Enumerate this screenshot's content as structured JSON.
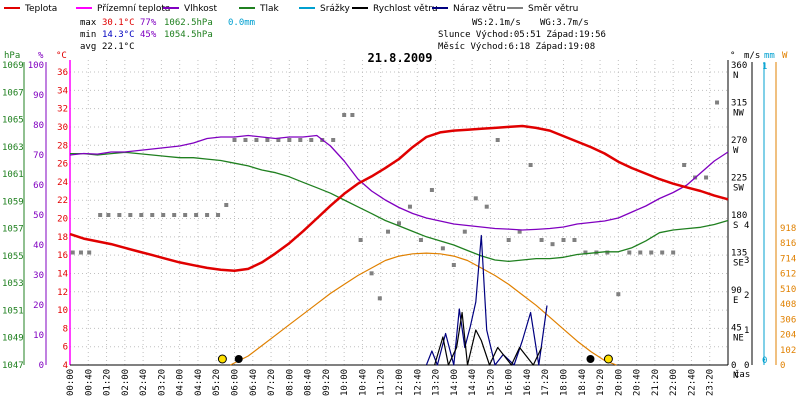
{
  "legend": [
    {
      "label": "Teplota",
      "color": "#e00000"
    },
    {
      "label": "Přízemní teplota",
      "color": "#ff00ff"
    },
    {
      "label": "Vlhkost",
      "color": "#8000c0"
    },
    {
      "label": "Tlak",
      "color": "#208020"
    },
    {
      "label": "Srážky",
      "color": "#00a0d0"
    },
    {
      "label": "Rychlost větru",
      "color": "#000000"
    },
    {
      "label": "Náraz větru",
      "color": "#000080"
    },
    {
      "label": "Směr větru",
      "color": "#808080"
    }
  ],
  "stats": {
    "max_label": "max",
    "max_temp": "30.1°C",
    "max_hum": "77%",
    "max_press": "1062.5hPa",
    "max_rain": "0.0mm",
    "min_label": "min",
    "min_temp": "14.3°C",
    "min_hum": "45%",
    "min_press": "1054.5hPa",
    "avg_label": "avg",
    "avg_temp": "22.1°C",
    "ws": "WS:2.1m/s",
    "wg": "WG:3.7m/s",
    "sun": "Slunce  Východ:05:51  Západ:19:56",
    "moon": "Měsíc  Východ:6:18   Západ:19:08"
  },
  "colors": {
    "temp": "#e00000",
    "ground": "#ff00ff",
    "hum": "#8000c0",
    "press": "#208020",
    "rain": "#00a0d0",
    "wind": "#000000",
    "gust": "#000080",
    "dir": "#808080",
    "sun": "#e08000",
    "grid": "#c0c0c0"
  },
  "chart_data": {
    "type": "line",
    "title": "21.8.2009",
    "x_unit": "čas",
    "x_ticks": [
      "00:00",
      "00:40",
      "01:20",
      "02:00",
      "02:40",
      "03:20",
      "04:00",
      "04:40",
      "05:20",
      "06:00",
      "06:40",
      "07:20",
      "08:00",
      "08:40",
      "09:20",
      "10:00",
      "10:40",
      "11:20",
      "12:00",
      "12:40",
      "13:20",
      "14:00",
      "14:40",
      "15:20",
      "16:00",
      "16:40",
      "17:20",
      "18:00",
      "18:40",
      "19:20",
      "20:00",
      "20:40",
      "21:20",
      "22:00",
      "22:40",
      "23:20"
    ],
    "axes": {
      "hpa": {
        "label": "hPa",
        "ticks": [
          "1047",
          "1049",
          "1051",
          "1053",
          "1055",
          "1057",
          "1059",
          "1061",
          "1063",
          "1065",
          "1067",
          "1069"
        ]
      },
      "percent": {
        "label": "%",
        "ticks": [
          "0",
          "10",
          "20",
          "30",
          "40",
          "50",
          "60",
          "70",
          "80",
          "90",
          "100"
        ]
      },
      "celsius": {
        "label": "°C",
        "ticks": [
          "4",
          "6",
          "8",
          "10",
          "12",
          "14",
          "16",
          "18",
          "20",
          "22",
          "24",
          "26",
          "28",
          "30",
          "32",
          "34",
          "36"
        ]
      },
      "degrees": {
        "label": "°",
        "ticks": [
          "0",
          "45",
          "90",
          "135",
          "180",
          "225",
          "270",
          "315",
          "360"
        ],
        "directions": [
          "N",
          "NE",
          "E",
          "SE",
          "S",
          "SW",
          "W",
          "NW",
          "N"
        ]
      },
      "ms": {
        "label": "m/s",
        "ticks": [
          "0",
          "1",
          "2",
          "3",
          "4"
        ]
      },
      "mm": {
        "label": "mm",
        "ticks": [
          "0",
          "1"
        ]
      },
      "wm2": {
        "label": "W",
        "ticks": [
          "0",
          "102",
          "204",
          "306",
          "408",
          "510",
          "612",
          "714",
          "816",
          "918"
        ]
      }
    },
    "series": [
      {
        "name": "Teplota",
        "unit": "°C",
        "color": "#e00000",
        "x": [
          0,
          0.5,
          1,
          1.5,
          2,
          2.5,
          3,
          3.5,
          4,
          4.5,
          5,
          5.5,
          6,
          6.5,
          7,
          7.5,
          8,
          8.5,
          9,
          9.5,
          10,
          10.5,
          11,
          11.5,
          12,
          12.5,
          13,
          13.5,
          14,
          14.5,
          15,
          15.5,
          16,
          16.5,
          17,
          17.5,
          18,
          18.5,
          19,
          19.5,
          20,
          20.5,
          21,
          21.5,
          22,
          22.5,
          23,
          23.5,
          24
        ],
        "y": [
          18.3,
          17.8,
          17.5,
          17.2,
          16.8,
          16.4,
          16.0,
          15.6,
          15.2,
          14.9,
          14.6,
          14.4,
          14.3,
          14.5,
          15.2,
          16.2,
          17.3,
          18.6,
          20.0,
          21.4,
          22.7,
          23.8,
          24.6,
          25.5,
          26.5,
          27.8,
          28.9,
          29.4,
          29.6,
          29.7,
          29.8,
          29.9,
          30.0,
          30.1,
          29.9,
          29.6,
          29.0,
          28.4,
          27.8,
          27.1,
          26.2,
          25.5,
          24.9,
          24.3,
          23.8,
          23.4,
          23.0,
          22.5,
          22.1
        ]
      },
      {
        "name": "Vlhkost",
        "unit": "%",
        "color": "#8000c0",
        "x": [
          0,
          0.5,
          1,
          1.5,
          2,
          2.5,
          3,
          3.5,
          4,
          4.5,
          5,
          5.5,
          6,
          6.5,
          7,
          7.5,
          8,
          8.5,
          9,
          9.5,
          10,
          10.5,
          11,
          11.5,
          12,
          12.5,
          13,
          13.5,
          14,
          14.5,
          15,
          15.5,
          16,
          16.5,
          17,
          17.5,
          18,
          18.5,
          19,
          19.5,
          20,
          20.5,
          21,
          21.5,
          22,
          22.5,
          23,
          23.5,
          24
        ],
        "y": [
          70,
          70.5,
          70.3,
          71,
          71,
          71.5,
          72,
          72.5,
          73,
          74,
          75.5,
          76,
          76,
          76.5,
          76,
          75.5,
          76,
          76,
          76.5,
          73,
          68,
          62,
          58,
          55,
          52.5,
          50.5,
          49,
          48,
          47,
          46.5,
          46,
          45.5,
          45.3,
          45,
          45.2,
          45.5,
          46,
          47,
          47.5,
          48,
          49,
          51,
          53,
          55.5,
          57.5,
          60,
          64,
          68,
          71
        ]
      },
      {
        "name": "Tlak",
        "unit": "hPa",
        "color": "#208020",
        "x": [
          0,
          0.5,
          1,
          1.5,
          2,
          2.5,
          3,
          3.5,
          4,
          4.5,
          5,
          5.5,
          6,
          6.5,
          7,
          7.5,
          8,
          8.5,
          9,
          9.5,
          10,
          10.5,
          11,
          11.5,
          12,
          12.5,
          13,
          13.5,
          14,
          14.5,
          15,
          15.5,
          16,
          16.5,
          17,
          17.5,
          18,
          18.5,
          19,
          19.5,
          20,
          20.5,
          21,
          21.5,
          22,
          22.5,
          23,
          23.5,
          24
        ],
        "y": [
          1062.5,
          1062.5,
          1062.4,
          1062.5,
          1062.6,
          1062.5,
          1062.4,
          1062.3,
          1062.2,
          1062.2,
          1062.1,
          1062.0,
          1061.8,
          1061.6,
          1061.3,
          1061.1,
          1060.8,
          1060.4,
          1060.0,
          1059.6,
          1059.1,
          1058.6,
          1058.1,
          1057.6,
          1057.2,
          1056.8,
          1056.4,
          1056.1,
          1055.8,
          1055.4,
          1055.0,
          1054.7,
          1054.6,
          1054.7,
          1054.8,
          1054.8,
          1054.9,
          1055.1,
          1055.2,
          1055.3,
          1055.3,
          1055.6,
          1056.1,
          1056.7,
          1056.9,
          1057.0,
          1057.1,
          1057.3,
          1057.6
        ]
      },
      {
        "name": "Směr větru",
        "unit": "°",
        "color": "#808080",
        "x": [
          0.1,
          0.4,
          0.7,
          1.1,
          1.4,
          1.8,
          2.2,
          2.6,
          3.0,
          3.4,
          3.8,
          4.2,
          4.6,
          5.0,
          5.4,
          5.7,
          6.0,
          6.4,
          6.8,
          7.2,
          7.6,
          8.0,
          8.4,
          8.8,
          9.2,
          9.6,
          10.0,
          10.3,
          10.6,
          11.0,
          11.3,
          11.6,
          12.0,
          12.4,
          12.8,
          13.2,
          13.6,
          14.0,
          14.4,
          14.8,
          15.2,
          15.6,
          16.0,
          16.4,
          16.8,
          17.2,
          17.6,
          18.0,
          18.4,
          18.8,
          19.2,
          19.6,
          20.0,
          20.4,
          20.8,
          21.2,
          21.6,
          22.0,
          22.4,
          22.8,
          23.2,
          23.6
        ],
        "y": [
          135,
          135,
          135,
          180,
          180,
          180,
          180,
          180,
          180,
          180,
          180,
          180,
          180,
          180,
          180,
          192,
          270,
          270,
          270,
          270,
          270,
          270,
          270,
          270,
          270,
          270,
          300,
          300,
          150,
          110,
          80,
          160,
          170,
          190,
          150,
          210,
          140,
          120,
          160,
          200,
          190,
          270,
          150,
          160,
          240,
          150,
          145,
          150,
          150,
          135,
          135,
          135,
          85,
          135,
          135,
          135,
          135,
          135,
          240,
          225,
          225,
          315
        ]
      },
      {
        "name": "Rychlost větru",
        "unit": "m/s",
        "color": "#000000",
        "x": [
          13.3,
          13.6,
          13.8,
          14.1,
          14.3,
          14.5,
          14.8,
          15.0,
          15.3,
          15.6,
          16.1,
          16.4,
          16.9,
          17.2
        ],
        "y": [
          0,
          0.8,
          0,
          0.5,
          1.5,
          0,
          1.0,
          0.7,
          0,
          0.5,
          0,
          0.5,
          0,
          0.5
        ]
      },
      {
        "name": "Náraz větru",
        "unit": "m/s",
        "color": "#000080",
        "x": [
          13.0,
          13.2,
          13.4,
          13.7,
          14.0,
          14.2,
          14.4,
          14.6,
          14.8,
          15.0,
          15.2,
          15.5,
          15.8,
          16.2,
          16.5,
          16.8,
          17.1,
          17.4
        ],
        "y": [
          0,
          0.4,
          0,
          0.9,
          0,
          1.6,
          0.5,
          1.1,
          1.8,
          3.7,
          1.0,
          0,
          0.3,
          0,
          0.7,
          1.5,
          0,
          1.7
        ]
      },
      {
        "name": "Sluneční záření",
        "unit": "W",
        "color": "#e08000",
        "x": [
          5.85,
          6.5,
          7,
          7.5,
          8,
          8.5,
          9,
          9.5,
          10,
          10.5,
          11,
          11.5,
          12,
          12.5,
          13,
          13.5,
          14,
          14.5,
          15,
          15.5,
          16,
          16.5,
          17,
          17.5,
          18,
          18.5,
          19,
          19.5,
          19.93
        ],
        "y": [
          0,
          60,
          130,
          200,
          270,
          340,
          410,
          480,
          540,
          600,
          650,
          700,
          730,
          745,
          750,
          745,
          730,
          700,
          650,
          600,
          540,
          470,
          400,
          320,
          240,
          160,
          90,
          30,
          0
        ]
      }
    ]
  }
}
